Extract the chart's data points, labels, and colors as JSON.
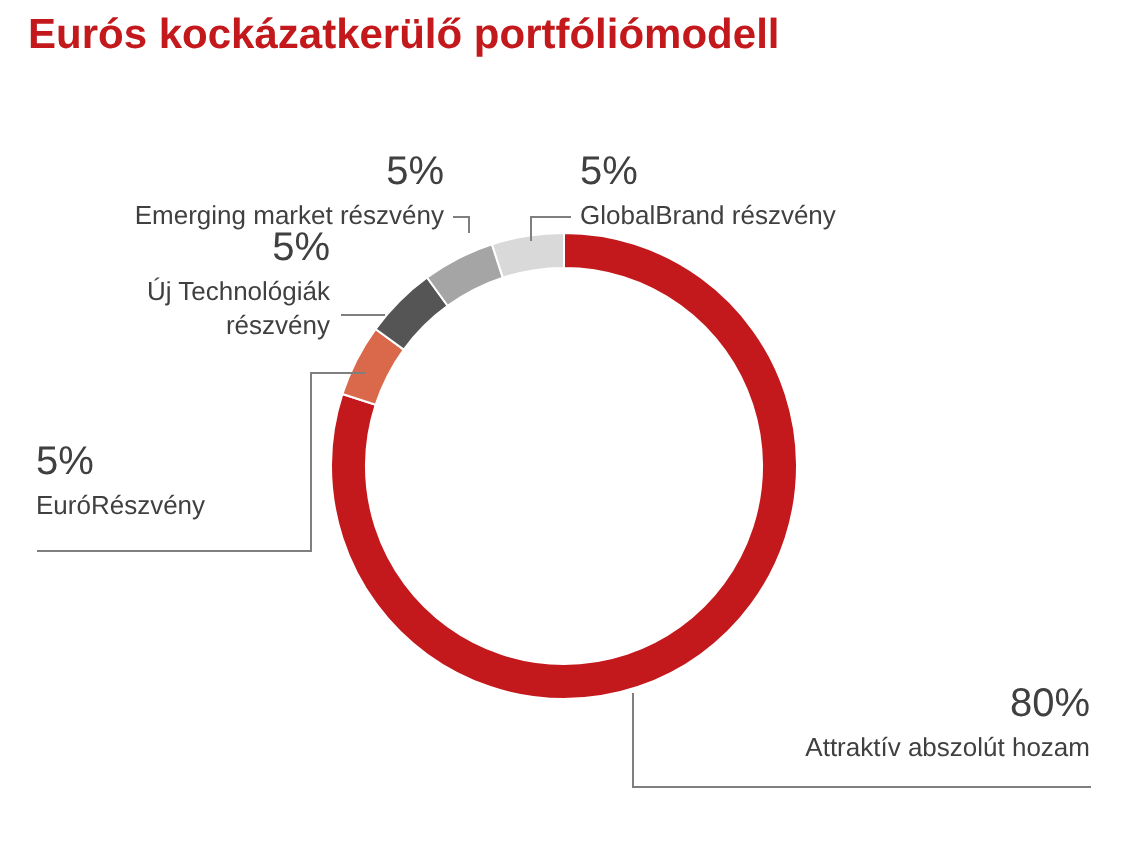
{
  "chart_data": {
    "type": "donut",
    "title": "Eurós kockázatkerülő portfóliómodell",
    "categories": [
      "Attraktív abszolút hozam",
      "EuróRészvény",
      "Új Technológiák részvény",
      "Emerging market részvény",
      "GlobalBrand részvény"
    ],
    "values": [
      80,
      5,
      5,
      5,
      5
    ],
    "colors": [
      "#c3191c",
      "#d9694a",
      "#555555",
      "#a5a5a5",
      "#d9d9d9"
    ],
    "value_labels": [
      "80%",
      "5%",
      "5%",
      "5%",
      "5%"
    ],
    "legend": false
  }
}
